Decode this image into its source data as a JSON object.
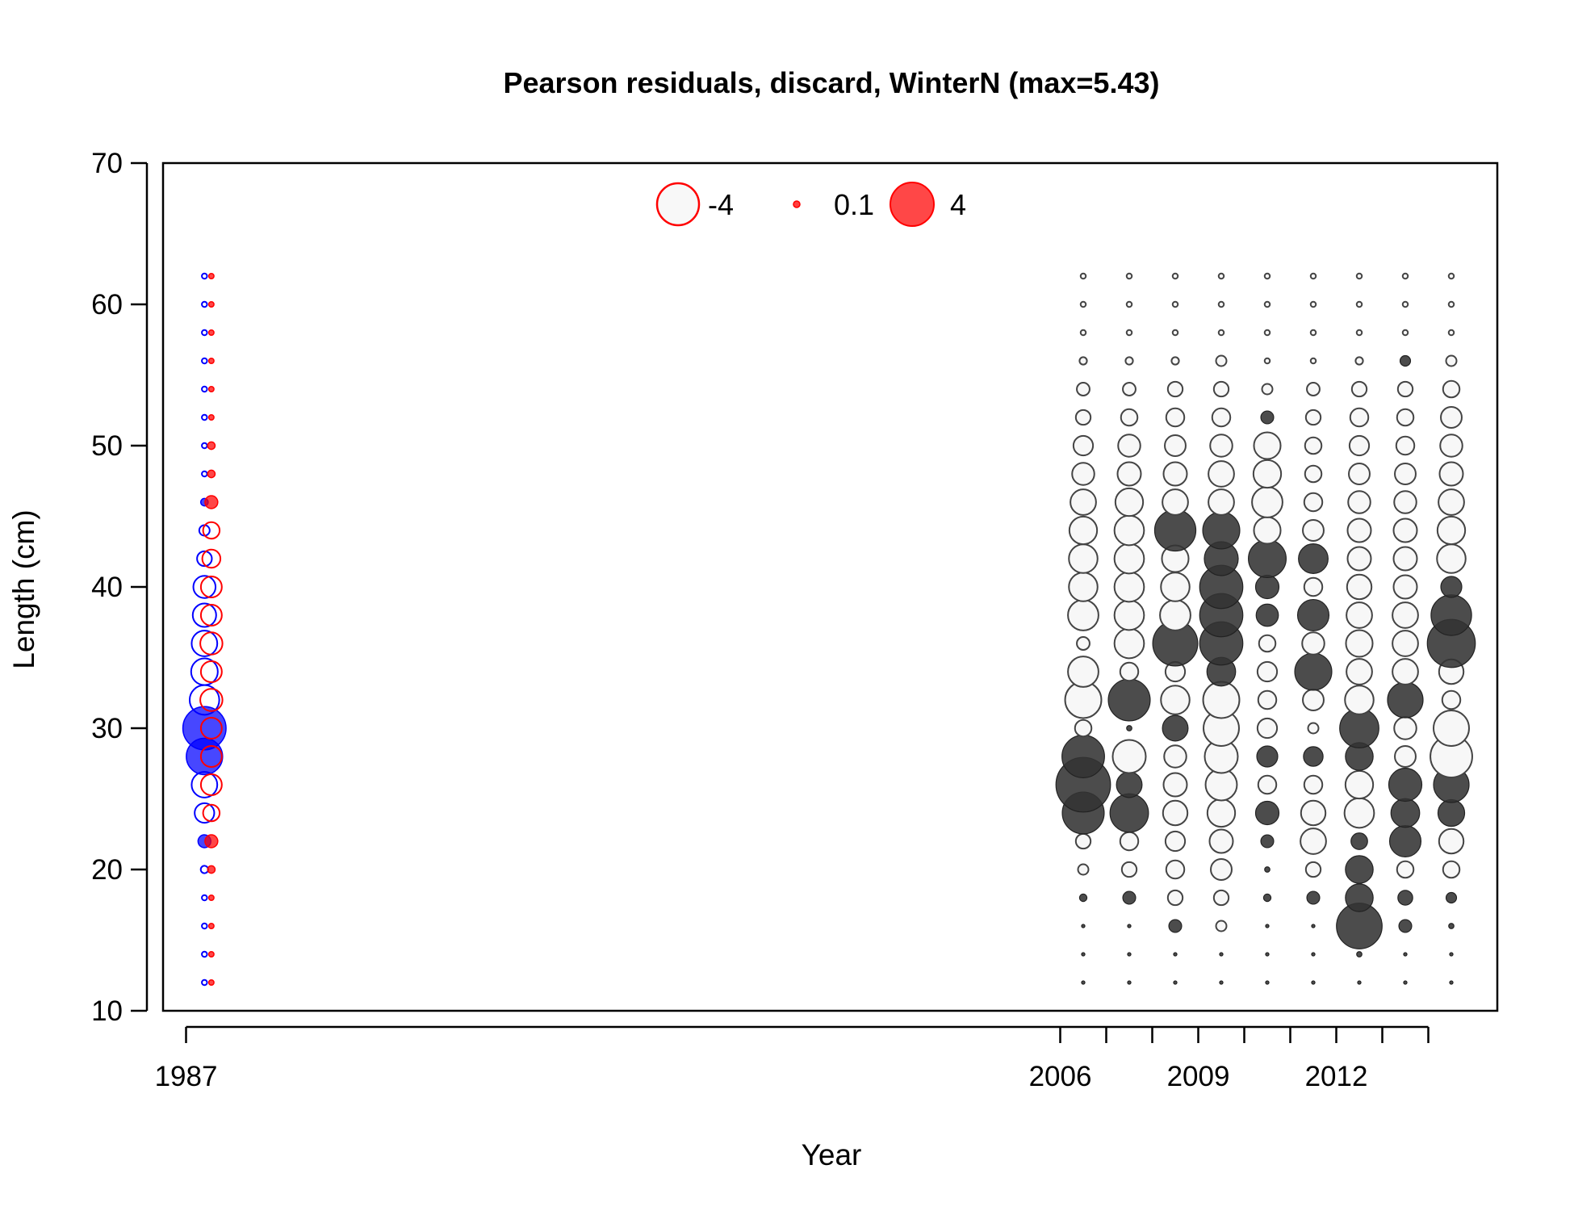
{
  "chart_data": {
    "type": "scatter",
    "subtype": "bubble",
    "title": "Pearson residuals, discard, WinterN (max=5.43)",
    "xlabel": "Year",
    "ylabel": "Length (cm)",
    "xlim": [
      1986.5,
      2015.5
    ],
    "ylim": [
      10,
      70
    ],
    "x_ticks": [
      1987,
      2006,
      2007,
      2008,
      2009,
      2010,
      2011,
      2012,
      2013,
      2014
    ],
    "x_tick_labels": [
      "1987",
      "2006",
      "2009",
      "2012"
    ],
    "y_ticks": [
      10,
      20,
      30,
      40,
      50,
      60,
      70
    ],
    "grid": false,
    "legend": {
      "position": "top-center",
      "entries": [
        {
          "label": "-4",
          "value": -4,
          "style": "open"
        },
        {
          "label": "0.1",
          "value": 0.1,
          "style": "filled"
        },
        {
          "label": "4",
          "value": 4,
          "style": "filled"
        }
      ],
      "color": "#ff0000"
    },
    "colors": {
      "positive_gray": "#333333",
      "negative_gray": "#444444",
      "blue": "#0000ff",
      "red": "#ff0000"
    },
    "series": [
      {
        "x": 1987.4,
        "sex": "female",
        "color": "blue",
        "y": [
          12,
          14,
          16,
          18,
          20,
          22,
          24,
          26,
          28,
          30,
          32,
          34,
          36,
          38,
          40,
          42,
          44,
          46,
          48,
          50,
          52,
          54,
          56,
          58,
          60,
          62
        ],
        "values": [
          0.05,
          0.05,
          0.05,
          0.05,
          0.1,
          0.3,
          0.7,
          1.2,
          2.4,
          3.4,
          1.6,
          1.3,
          1.2,
          1.0,
          0.9,
          0.4,
          0.2,
          0.1,
          0.05,
          0.05,
          0.05,
          0.05,
          0.05,
          0.05,
          0.05,
          0.05
        ],
        "sign": [
          -1,
          -1,
          -1,
          -1,
          -1,
          1,
          -1,
          -1,
          1,
          1,
          -1,
          -1,
          -1,
          -1,
          -1,
          -1,
          -1,
          1,
          -1,
          -1,
          -1,
          -1,
          -1,
          -1,
          -1,
          -1
        ]
      },
      {
        "x": 1987.55,
        "sex": "male",
        "color": "red",
        "y": [
          12,
          14,
          16,
          18,
          20,
          22,
          24,
          26,
          28,
          30,
          32,
          34,
          36,
          38,
          40,
          42,
          44,
          46,
          48,
          50,
          52,
          54,
          56,
          58,
          60,
          62
        ],
        "values": [
          0.05,
          0.05,
          0.05,
          0.05,
          0.1,
          0.3,
          0.5,
          0.8,
          0.8,
          0.8,
          0.9,
          0.8,
          0.9,
          0.8,
          0.8,
          0.6,
          0.5,
          0.3,
          0.1,
          0.1,
          0.05,
          0.05,
          0.05,
          0.05,
          0.05,
          0.05
        ],
        "sign": [
          1,
          1,
          1,
          1,
          1,
          1,
          -1,
          -1,
          -1,
          -1,
          -1,
          -1,
          -1,
          -1,
          -1,
          -1,
          -1,
          1,
          1,
          1,
          1,
          1,
          1,
          1,
          1,
          1
        ]
      },
      {
        "x": 2006.5,
        "color": "gray",
        "y": [
          12,
          14,
          16,
          18,
          20,
          22,
          24,
          26,
          28,
          30,
          32,
          34,
          36,
          38,
          40,
          42,
          44,
          46,
          48,
          50,
          52,
          54,
          56,
          58,
          60,
          62
        ],
        "values": [
          0.02,
          0.02,
          0.02,
          0.1,
          0.2,
          0.4,
          3.2,
          5.43,
          3.3,
          0.5,
          2.4,
          1.7,
          0.3,
          1.7,
          1.5,
          1.5,
          1.4,
          1.2,
          0.9,
          0.7,
          0.4,
          0.3,
          0.1,
          0.05,
          0.05,
          0.05
        ],
        "sign": [
          1,
          1,
          1,
          1,
          -1,
          -1,
          1,
          1,
          1,
          -1,
          -1,
          -1,
          -1,
          -1,
          -1,
          -1,
          -1,
          -1,
          -1,
          -1,
          -1,
          -1,
          -1,
          -1,
          -1,
          -1
        ]
      },
      {
        "x": 2007.5,
        "color": "gray",
        "y": [
          12,
          14,
          16,
          18,
          20,
          22,
          24,
          26,
          28,
          30,
          32,
          34,
          36,
          38,
          40,
          42,
          44,
          46,
          48,
          50,
          52,
          54,
          56,
          58,
          60,
          62
        ],
        "values": [
          0.02,
          0.02,
          0.02,
          0.3,
          0.4,
          0.6,
          2.7,
          1.2,
          2.0,
          0.05,
          3.2,
          0.6,
          1.6,
          1.6,
          1.6,
          1.6,
          1.6,
          1.4,
          1.0,
          0.9,
          0.5,
          0.3,
          0.1,
          0.05,
          0.05,
          0.05
        ],
        "sign": [
          1,
          1,
          1,
          1,
          -1,
          -1,
          1,
          1,
          -1,
          1,
          1,
          -1,
          -1,
          -1,
          -1,
          -1,
          -1,
          -1,
          -1,
          -1,
          -1,
          -1,
          -1,
          -1,
          -1,
          -1
        ]
      },
      {
        "x": 2008.5,
        "color": "gray",
        "y": [
          12,
          14,
          16,
          18,
          20,
          22,
          24,
          26,
          28,
          30,
          32,
          34,
          36,
          38,
          40,
          42,
          44,
          46,
          48,
          50,
          52,
          54,
          56,
          58,
          60,
          62
        ],
        "values": [
          0.02,
          0.02,
          0.3,
          0.4,
          0.6,
          0.7,
          1.1,
          1.0,
          0.9,
          1.2,
          1.5,
          0.7,
          3.7,
          1.7,
          1.5,
          1.3,
          3.1,
          1.2,
          1.0,
          0.8,
          0.6,
          0.4,
          0.1,
          0.05,
          0.05,
          0.05
        ],
        "sign": [
          1,
          1,
          1,
          -1,
          -1,
          -1,
          -1,
          -1,
          -1,
          1,
          -1,
          -1,
          1,
          -1,
          -1,
          -1,
          1,
          -1,
          -1,
          -1,
          -1,
          -1,
          -1,
          -1,
          -1,
          -1
        ]
      },
      {
        "x": 2009.5,
        "color": "gray",
        "y": [
          12,
          14,
          16,
          18,
          20,
          22,
          24,
          26,
          28,
          30,
          32,
          34,
          36,
          38,
          40,
          42,
          44,
          46,
          48,
          50,
          52,
          54,
          56,
          58,
          60,
          62
        ],
        "values": [
          0.02,
          0.02,
          0.2,
          0.4,
          0.8,
          1.0,
          1.4,
          1.8,
          2.0,
          2.3,
          2.4,
          1.5,
          3.4,
          3.4,
          3.4,
          2.1,
          2.5,
          1.2,
          1.2,
          0.9,
          0.6,
          0.4,
          0.2,
          0.05,
          0.05,
          0.05
        ],
        "sign": [
          1,
          1,
          -1,
          -1,
          -1,
          -1,
          -1,
          -1,
          -1,
          -1,
          -1,
          1,
          1,
          1,
          1,
          1,
          1,
          -1,
          -1,
          -1,
          -1,
          -1,
          -1,
          -1,
          -1,
          -1
        ]
      },
      {
        "x": 2010.5,
        "color": "gray",
        "y": [
          12,
          14,
          16,
          18,
          20,
          22,
          24,
          26,
          28,
          30,
          32,
          34,
          36,
          38,
          40,
          42,
          44,
          46,
          48,
          50,
          52,
          54,
          56,
          58,
          60,
          62
        ],
        "values": [
          0.02,
          0.02,
          0.02,
          0.1,
          0.05,
          0.3,
          1.0,
          0.6,
          0.8,
          0.7,
          0.6,
          0.7,
          0.5,
          0.9,
          1.0,
          2.6,
          1.3,
          1.7,
          1.4,
          1.3,
          0.3,
          0.2,
          0.05,
          0.05,
          0.05,
          0.05
        ],
        "sign": [
          1,
          1,
          1,
          1,
          1,
          1,
          1,
          -1,
          1,
          -1,
          -1,
          -1,
          -1,
          1,
          1,
          1,
          -1,
          -1,
          -1,
          -1,
          1,
          -1,
          -1,
          -1,
          -1,
          -1
        ]
      },
      {
        "x": 2011.5,
        "color": "gray",
        "y": [
          12,
          14,
          16,
          18,
          20,
          22,
          24,
          26,
          28,
          30,
          32,
          34,
          36,
          38,
          40,
          42,
          44,
          46,
          48,
          50,
          52,
          54,
          56,
          58,
          60,
          62
        ],
        "values": [
          0.02,
          0.02,
          0.02,
          0.3,
          0.4,
          1.2,
          1.1,
          0.6,
          0.7,
          0.2,
          0.8,
          2.5,
          0.9,
          1.8,
          0.6,
          1.6,
          0.8,
          0.6,
          0.5,
          0.5,
          0.4,
          0.3,
          0.05,
          0.05,
          0.05,
          0.05
        ],
        "sign": [
          1,
          1,
          1,
          1,
          -1,
          -1,
          -1,
          -1,
          1,
          -1,
          -1,
          1,
          -1,
          1,
          -1,
          1,
          -1,
          -1,
          -1,
          -1,
          -1,
          -1,
          -1,
          -1,
          -1,
          -1
        ]
      },
      {
        "x": 2012.5,
        "color": "gray",
        "y": [
          12,
          14,
          16,
          18,
          20,
          22,
          24,
          26,
          28,
          30,
          32,
          34,
          36,
          38,
          40,
          42,
          44,
          46,
          48,
          50,
          52,
          54,
          56,
          58,
          60,
          62
        ],
        "values": [
          0.02,
          0.05,
          3.8,
          1.4,
          1.4,
          0.5,
          1.6,
          1.4,
          1.4,
          2.8,
          1.5,
          1.2,
          1.3,
          1.2,
          1.1,
          1.0,
          1.0,
          0.9,
          0.8,
          0.7,
          0.6,
          0.4,
          0.1,
          0.05,
          0.05,
          0.05
        ],
        "sign": [
          1,
          1,
          1,
          1,
          1,
          1,
          -1,
          -1,
          1,
          1,
          -1,
          -1,
          -1,
          -1,
          -1,
          -1,
          -1,
          -1,
          -1,
          -1,
          -1,
          -1,
          -1,
          -1,
          -1,
          -1
        ]
      },
      {
        "x": 2013.5,
        "color": "gray",
        "y": [
          12,
          14,
          16,
          18,
          20,
          22,
          24,
          26,
          28,
          30,
          32,
          34,
          36,
          38,
          40,
          42,
          44,
          46,
          48,
          50,
          52,
          54,
          56,
          58,
          60,
          62
        ],
        "values": [
          0.02,
          0.02,
          0.3,
          0.4,
          0.5,
          1.8,
          1.5,
          2.0,
          0.8,
          0.9,
          2.3,
          1.2,
          1.2,
          1.2,
          1.0,
          1.0,
          1.0,
          0.9,
          0.8,
          0.6,
          0.5,
          0.4,
          0.2,
          0.05,
          0.05,
          0.05
        ],
        "sign": [
          1,
          1,
          1,
          1,
          -1,
          1,
          1,
          1,
          -1,
          -1,
          1,
          -1,
          -1,
          -1,
          -1,
          -1,
          -1,
          -1,
          -1,
          -1,
          -1,
          -1,
          1,
          -1,
          -1,
          -1
        ]
      },
      {
        "x": 2014.5,
        "color": "gray",
        "y": [
          12,
          14,
          16,
          18,
          20,
          22,
          24,
          26,
          28,
          30,
          32,
          34,
          36,
          38,
          40,
          42,
          44,
          46,
          48,
          50,
          52,
          54,
          56,
          58,
          60,
          62
        ],
        "values": [
          0.02,
          0.02,
          0.05,
          0.2,
          0.5,
          1.1,
          1.3,
          2.3,
          3.2,
          2.3,
          0.6,
          1.1,
          4.2,
          3.0,
          0.8,
          1.5,
          1.4,
          1.2,
          1.0,
          0.9,
          0.8,
          0.5,
          0.2,
          0.05,
          0.05,
          0.05
        ],
        "sign": [
          1,
          1,
          1,
          1,
          -1,
          -1,
          1,
          1,
          -1,
          -1,
          -1,
          -1,
          1,
          1,
          1,
          -1,
          -1,
          -1,
          -1,
          -1,
          -1,
          -1,
          -1,
          -1,
          -1,
          -1
        ]
      }
    ]
  }
}
